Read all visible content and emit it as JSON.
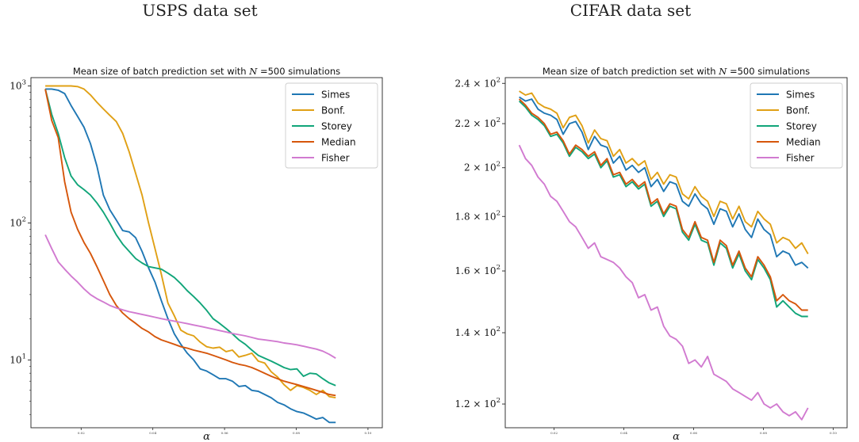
{
  "figure": {
    "left_title": "USPS data set",
    "right_title": "CIFAR data set"
  },
  "colors": {
    "Simes": "#1f77b4",
    "Bonf.": "#e0a015",
    "Storey": "#11a579",
    "Median": "#d6560b",
    "Fisher": "#d17ad0"
  },
  "chart_data": [
    {
      "type": "line",
      "title": "Mean size of batch prediction set with N =500 simulations",
      "title_prefix": "Mean size of batch prediction set with ",
      "title_var": "N",
      "title_suffix": " =500 simulations",
      "xlabel": "α",
      "ylabel": "",
      "yscale": "log",
      "ylim": [
        3.2,
        1150
      ],
      "xlim": [
        0.006,
        0.104
      ],
      "x_ticks": [
        0.02,
        0.04,
        0.06,
        0.08,
        0.1
      ],
      "x_tick_labels": [
        "0.02",
        "0.04",
        "0.06",
        "0.08",
        "0.10"
      ],
      "y_ticks": [
        10,
        100,
        1000
      ],
      "y_tick_labels": [
        {
          "base": "10",
          "exp": "1"
        },
        {
          "base": "10",
          "exp": "2"
        },
        {
          "base": "10",
          "exp": "3"
        }
      ],
      "legend_position": "top-right",
      "x_start": 0.01,
      "x_step": 0.0018,
      "series": [
        {
          "name": "Simes",
          "values": [
            950,
            950,
            930,
            880,
            720,
            600,
            500,
            380,
            260,
            160,
            125,
            105,
            88,
            86,
            78,
            62,
            47,
            37,
            27,
            20,
            15.5,
            13,
            11.2,
            10,
            8.6,
            8.3,
            7.8,
            7.3,
            7.3,
            7.0,
            6.4,
            6.5,
            6.0,
            5.9,
            5.6,
            5.3,
            4.9,
            4.7,
            4.4,
            4.2,
            4.1,
            3.9,
            3.7,
            3.8,
            3.5,
            3.5
          ]
        },
        {
          "name": "Bonf.",
          "values": [
            1000,
            1000,
            1000,
            1000,
            1000,
            990,
            950,
            860,
            760,
            680,
            610,
            550,
            450,
            330,
            230,
            160,
            100,
            65,
            42,
            26,
            21,
            16.5,
            15.5,
            15,
            13.5,
            12.5,
            12.2,
            12.4,
            11.5,
            11.8,
            10.5,
            10.8,
            11.2,
            9.8,
            9.5,
            8.2,
            7.5,
            6.6,
            6.0,
            6.5,
            6.3,
            6.0,
            5.6,
            6.0,
            5.4,
            5.3
          ]
        },
        {
          "name": "Storey",
          "values": [
            950,
            620,
            450,
            300,
            220,
            190,
            175,
            160,
            140,
            120,
            100,
            82,
            70,
            62,
            55,
            51,
            48,
            47,
            46,
            43,
            40,
            36,
            32,
            29,
            26,
            23,
            20,
            18.5,
            17,
            15.5,
            14,
            13,
            11.8,
            10.8,
            10.3,
            9.8,
            9.3,
            8.8,
            8.5,
            8.6,
            7.6,
            8.0,
            7.9,
            7.3,
            6.8,
            6.5
          ]
        },
        {
          "name": "Median",
          "values": [
            950,
            560,
            420,
            200,
            120,
            90,
            72,
            60,
            48,
            38,
            30,
            25,
            22,
            20,
            18.5,
            17,
            16,
            14.8,
            14,
            13.5,
            13,
            12.5,
            12.2,
            11.8,
            11.5,
            11.2,
            10.8,
            10.4,
            10,
            9.6,
            9.3,
            9.1,
            8.8,
            8.4,
            8.0,
            7.6,
            7.3,
            7.0,
            6.8,
            6.6,
            6.4,
            6.2,
            6.0,
            5.8,
            5.6,
            5.5
          ]
        },
        {
          "name": "Fisher",
          "values": [
            82,
            65,
            52,
            46,
            41,
            37,
            33,
            30,
            28,
            26.5,
            25,
            24,
            23.2,
            22.5,
            22,
            21.5,
            21,
            20.5,
            20,
            19.6,
            19.2,
            18.8,
            18.4,
            18,
            17.6,
            17.2,
            16.8,
            16.4,
            16,
            15.6,
            15.3,
            15,
            14.6,
            14.2,
            14,
            13.8,
            13.6,
            13.3,
            13.1,
            12.9,
            12.6,
            12.3,
            12.0,
            11.6,
            11.0,
            10.3
          ]
        }
      ]
    },
    {
      "type": "line",
      "title": "Mean size of batch prediction set with N =500 simulations",
      "title_prefix": "Mean size of batch prediction set with ",
      "title_var": "N",
      "title_suffix": " =500 simulations",
      "xlabel": "α",
      "ylabel": "",
      "yscale": "log",
      "ylim": [
        114,
        243
      ],
      "xlim": [
        0.006,
        0.104
      ],
      "x_ticks": [
        0.02,
        0.04,
        0.06,
        0.08,
        0.1
      ],
      "x_tick_labels": [
        "0.02",
        "0.04",
        "0.06",
        "0.08",
        "0.10"
      ],
      "y_ticks": [
        120,
        140,
        160,
        180,
        200,
        220,
        240
      ],
      "y_tick_labels": [
        {
          "base": "1.2 × 10",
          "exp": "2"
        },
        {
          "base": "1.4 × 10",
          "exp": "2"
        },
        {
          "base": "1.6 × 10",
          "exp": "2"
        },
        {
          "base": "1.8 × 10",
          "exp": "2"
        },
        {
          "base": "2 × 10",
          "exp": "2"
        },
        {
          "base": "2.2 × 10",
          "exp": "2"
        },
        {
          "base": "2.4 × 10",
          "exp": "2"
        }
      ],
      "legend_position": "top-right",
      "x_start": 0.01,
      "x_step": 0.0018,
      "series": [
        {
          "name": "Simes",
          "values": [
            233,
            231,
            232,
            227,
            225,
            224,
            222,
            215,
            220,
            221,
            216,
            208,
            214,
            210,
            209,
            202,
            205,
            199,
            201,
            198,
            200,
            192,
            195,
            190,
            194,
            193,
            186,
            184,
            189,
            185,
            183,
            177,
            183,
            182,
            176,
            181,
            175,
            172,
            179,
            175,
            173,
            165,
            167,
            166,
            162,
            163,
            161
          ]
        },
        {
          "name": "Bonf.",
          "values": [
            236,
            234,
            235,
            230,
            228,
            227,
            225,
            218,
            223,
            224,
            219,
            211,
            217,
            213,
            212,
            205,
            208,
            202,
            204,
            201,
            203,
            195,
            198,
            193,
            197,
            196,
            189,
            187,
            192,
            188,
            186,
            180,
            186,
            185,
            179,
            184,
            178,
            176,
            182,
            179,
            177,
            170,
            172,
            171,
            168,
            170,
            166
          ]
        },
        {
          "name": "Storey",
          "values": [
            231,
            228,
            224,
            222,
            219,
            214,
            215,
            211,
            205,
            209,
            207,
            204,
            206,
            200,
            203,
            196,
            197,
            192,
            194,
            191,
            193,
            184,
            186,
            180,
            184,
            183,
            174,
            171,
            177,
            171,
            170,
            162,
            170,
            168,
            161,
            166,
            160,
            157,
            164,
            161,
            157,
            148,
            150,
            148,
            146,
            145,
            145
          ]
        },
        {
          "name": "Median",
          "values": [
            232,
            229,
            225,
            223,
            220,
            215,
            216,
            212,
            206,
            210,
            208,
            205,
            207,
            201,
            204,
            197,
            198,
            193,
            195,
            192,
            194,
            185,
            187,
            181,
            185,
            184,
            175,
            172,
            178,
            172,
            171,
            163,
            171,
            169,
            162,
            167,
            161,
            158,
            165,
            162,
            158,
            150,
            152,
            150,
            149,
            147,
            147
          ]
        },
        {
          "name": "Fisher",
          "values": [
            210,
            204,
            201,
            196,
            193,
            188,
            186,
            182,
            178,
            176,
            172,
            168,
            170,
            165,
            164,
            163,
            161,
            158,
            156,
            151,
            152,
            147,
            148,
            142,
            139,
            138,
            136,
            131,
            132,
            130,
            133,
            128,
            127,
            126,
            124,
            123,
            122,
            121,
            123,
            120,
            119,
            120,
            118,
            117,
            118,
            116,
            119
          ]
        }
      ]
    }
  ]
}
